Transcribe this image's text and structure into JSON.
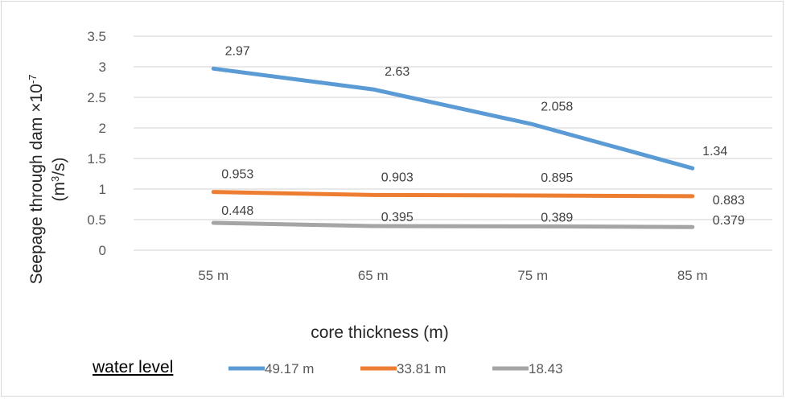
{
  "chart_data": {
    "type": "line",
    "categories": [
      "55 m",
      "65 m",
      "75 m",
      "85 m"
    ],
    "series": [
      {
        "name": "49.17 m",
        "values": [
          2.97,
          2.63,
          2.058,
          1.34
        ],
        "labels": [
          "2.97",
          "2.63",
          "2.058",
          "1.34"
        ],
        "color": "#5b9bd5"
      },
      {
        "name": "33.81 m",
        "values": [
          0.953,
          0.903,
          0.895,
          0.883
        ],
        "labels": [
          "0.953",
          "0.903",
          "0.895",
          "0.883"
        ],
        "color": "#ed7d31"
      },
      {
        "name": "18.43",
        "values": [
          0.448,
          0.395,
          0.389,
          0.379
        ],
        "labels": [
          "0.448",
          "0.395",
          "0.389",
          "0.379"
        ],
        "color": "#a5a5a5"
      }
    ],
    "yticks": [
      "0",
      "0.5",
      "1",
      "1.5",
      "2",
      "2.5",
      "3",
      "3.5"
    ],
    "ylim": [
      0,
      3.5
    ],
    "xlabel": "core thickness (m)",
    "ylabel_line1": "Seepage through dam ×10",
    "ylabel_exp": "-7",
    "ylabel_line2_pre": "(m",
    "ylabel_line2_sup": "3",
    "ylabel_line2_post": "/s)",
    "legend_title": "water level",
    "legend_position": "bottom",
    "grid": true,
    "gridline_color": "#d9d9d9"
  }
}
